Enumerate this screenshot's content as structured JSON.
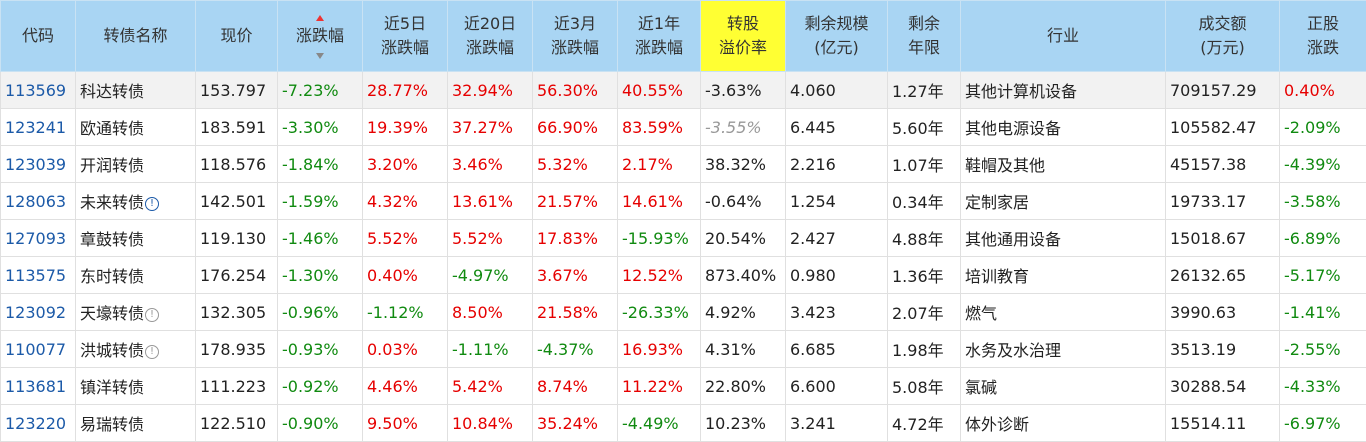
{
  "table": {
    "header": [
      [
        "代码"
      ],
      [
        "转债名称"
      ],
      [
        "现价"
      ],
      [
        "涨跌幅"
      ],
      [
        "近5日",
        "涨跌幅"
      ],
      [
        "近20日",
        "涨跌幅"
      ],
      [
        "近3月",
        "涨跌幅"
      ],
      [
        "近1年",
        "涨跌幅"
      ],
      [
        "转股",
        "溢价率"
      ],
      [
        "剩余规模",
        "(亿元)"
      ],
      [
        "剩余",
        "年限"
      ],
      [
        "行业"
      ],
      [
        "成交额",
        "(万元)"
      ],
      [
        "正股",
        "涨跌"
      ]
    ],
    "highlight_header": 8,
    "sorted_header": 3,
    "signed_columns": [
      3,
      4,
      5,
      6,
      7,
      13
    ],
    "rows": [
      {
        "cells": [
          "113569",
          "科达转债",
          "153.797",
          "-7.23%",
          "28.77%",
          "32.94%",
          "56.30%",
          "40.55%",
          "-3.63%",
          "4.060",
          "1.27年",
          "其他计算机设备",
          "709157.29",
          "0.40%"
        ]
      },
      {
        "cells": [
          "123241",
          "欧通转债",
          "183.591",
          "-3.30%",
          "19.39%",
          "37.27%",
          "66.90%",
          "83.59%",
          "-3.55%",
          "6.445",
          "5.60年",
          "其他电源设备",
          "105582.47",
          "-2.09%"
        ],
        "muted": [
          8
        ]
      },
      {
        "cells": [
          "123039",
          "开润转债",
          "118.576",
          "-1.84%",
          "3.20%",
          "3.46%",
          "5.32%",
          "2.17%",
          "38.32%",
          "2.216",
          "1.07年",
          "鞋帽及其他",
          "45157.38",
          "-4.39%"
        ]
      },
      {
        "cells": [
          "128063",
          "未来转债",
          "142.501",
          "-1.59%",
          "4.32%",
          "13.61%",
          "21.57%",
          "14.61%",
          "-0.64%",
          "1.254",
          "0.34年",
          "定制家居",
          "19733.17",
          "-3.58%"
        ],
        "badge": "blue"
      },
      {
        "cells": [
          "127093",
          "章鼓转债",
          "119.130",
          "-1.46%",
          "5.52%",
          "5.52%",
          "17.83%",
          "-15.93%",
          "20.54%",
          "2.427",
          "4.88年",
          "其他通用设备",
          "15018.67",
          "-6.89%"
        ]
      },
      {
        "cells": [
          "113575",
          "东时转债",
          "176.254",
          "-1.30%",
          "0.40%",
          "-4.97%",
          "3.67%",
          "12.52%",
          "873.40%",
          "0.980",
          "1.36年",
          "培训教育",
          "26132.65",
          "-5.17%"
        ]
      },
      {
        "cells": [
          "123092",
          "天壕转债",
          "132.305",
          "-0.96%",
          "-1.12%",
          "8.50%",
          "21.58%",
          "-26.33%",
          "4.92%",
          "3.423",
          "2.07年",
          "燃气",
          "3990.63",
          "-1.41%"
        ],
        "badge": "gray"
      },
      {
        "cells": [
          "110077",
          "洪城转债",
          "178.935",
          "-0.93%",
          "0.03%",
          "-1.11%",
          "-4.37%",
          "16.93%",
          "4.31%",
          "6.685",
          "1.98年",
          "水务及水治理",
          "3513.19",
          "-2.55%"
        ],
        "badge": "gray"
      },
      {
        "cells": [
          "113681",
          "镇洋转债",
          "111.223",
          "-0.92%",
          "4.46%",
          "5.42%",
          "8.74%",
          "11.22%",
          "22.80%",
          "6.600",
          "5.08年",
          "氯碱",
          "30288.54",
          "-4.33%"
        ]
      },
      {
        "cells": [
          "123220",
          "易瑞转债",
          "122.510",
          "-0.90%",
          "9.50%",
          "10.84%",
          "35.24%",
          "-4.49%",
          "10.23%",
          "3.241",
          "4.72年",
          "体外诊断",
          "15514.11",
          "-6.97%"
        ]
      }
    ]
  }
}
